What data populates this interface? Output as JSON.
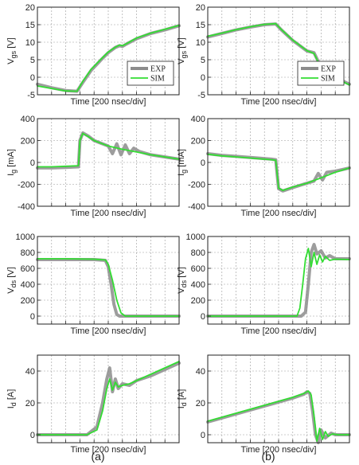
{
  "colors": {
    "exp": "#8c8c8c",
    "sim": "#33dd33",
    "axis": "#222222",
    "grid": "#999999"
  },
  "captions": [
    "(a)",
    "(b)"
  ],
  "chart_data": [
    {
      "type": "line",
      "panel": "a",
      "row": 0,
      "ylabel_main": "V",
      "ylabel_sub": "gs",
      "ylabel_unit": " [V]",
      "xlabel": "Time [200 nsec/div]",
      "ylim": [
        -5,
        20
      ],
      "yticks": [
        -5,
        0,
        5,
        10,
        15,
        20
      ],
      "xlim": [
        0,
        10
      ],
      "xdivs": 10,
      "legend": {
        "position": "bottom-right",
        "entries": [
          "EXP",
          "SIM"
        ]
      },
      "series": [
        {
          "name": "EXP",
          "x": [
            0,
            1.0,
            2.0,
            2.8,
            3.2,
            3.8,
            4.5,
            5.0,
            5.5,
            5.8,
            6.0,
            6.3,
            7,
            8,
            9,
            10
          ],
          "y": [
            -2,
            -3,
            -3.8,
            -4,
            -1.5,
            2,
            5,
            7,
            8.5,
            9,
            8.8,
            9.5,
            11,
            12.5,
            13.5,
            14.7
          ]
        },
        {
          "name": "SIM",
          "x": [
            0,
            1.0,
            2.0,
            2.8,
            3.2,
            3.8,
            4.5,
            5.0,
            5.5,
            5.8,
            6.0,
            6.3,
            7,
            8,
            9,
            10
          ],
          "y": [
            -2.5,
            -3.2,
            -3.9,
            -4,
            -1.2,
            2.3,
            5.2,
            7.2,
            8.6,
            9.2,
            9,
            9.6,
            11.2,
            12.6,
            13.7,
            14.8
          ]
        }
      ]
    },
    {
      "type": "line",
      "panel": "b",
      "row": 0,
      "ylabel_main": "V",
      "ylabel_sub": "gs",
      "ylabel_unit": " [V]",
      "xlabel": "Time [200 nsec/div]",
      "ylim": [
        -5,
        20
      ],
      "yticks": [
        -5,
        0,
        5,
        10,
        15,
        20
      ],
      "xlim": [
        0,
        10
      ],
      "xdivs": 10,
      "legend": {
        "position": "bottom-right",
        "entries": [
          "EXP",
          "SIM"
        ]
      },
      "series": [
        {
          "name": "EXP",
          "x": [
            0,
            1,
            2,
            3,
            4.0,
            4.8,
            5.2,
            6,
            7,
            7.5,
            7.8,
            8.2,
            9,
            10
          ],
          "y": [
            11.5,
            12.5,
            13.5,
            14.3,
            15,
            15.2,
            13.5,
            10.5,
            7.5,
            7,
            4.5,
            2,
            0,
            -2
          ]
        },
        {
          "name": "SIM",
          "x": [
            0,
            1,
            2,
            3,
            4.0,
            4.8,
            5.2,
            6,
            7,
            7.5,
            7.8,
            8.2,
            9,
            10
          ],
          "y": [
            11.7,
            12.6,
            13.6,
            14.4,
            15.1,
            15.3,
            13.6,
            10.6,
            7.6,
            6.8,
            4.3,
            1.8,
            -0.2,
            -2.2
          ]
        }
      ]
    },
    {
      "type": "line",
      "panel": "a",
      "row": 1,
      "ylabel_main": "I",
      "ylabel_sub": "g",
      "ylabel_unit": " [mA]",
      "xlabel": "Time [200 nsec/div]",
      "ylim": [
        -400,
        400
      ],
      "yticks": [
        -400,
        -200,
        0,
        200,
        400
      ],
      "xlim": [
        0,
        10
      ],
      "xdivs": 10,
      "series": [
        {
          "name": "EXP",
          "x": [
            0,
            1,
            2,
            2.9,
            3.0,
            3.2,
            3.6,
            4,
            5,
            5.3,
            5.6,
            5.9,
            6.2,
            6.5,
            6.8,
            7.2,
            8,
            9,
            10
          ],
          "y": [
            -50,
            -50,
            -45,
            -40,
            200,
            270,
            240,
            200,
            150,
            80,
            170,
            70,
            160,
            80,
            130,
            100,
            70,
            50,
            30
          ]
        },
        {
          "name": "SIM",
          "x": [
            0,
            1,
            2,
            2.9,
            3.0,
            3.2,
            3.6,
            4,
            5,
            6,
            7,
            8,
            9,
            10
          ],
          "y": [
            -40,
            -40,
            -35,
            -30,
            200,
            265,
            235,
            200,
            150,
            120,
            95,
            70,
            50,
            30
          ]
        }
      ]
    },
    {
      "type": "line",
      "panel": "b",
      "row": 1,
      "ylabel_main": "I",
      "ylabel_sub": "g",
      "ylabel_unit": " [mA]",
      "xlabel": "Time [200 nsec/div]",
      "ylim": [
        -400,
        400
      ],
      "yticks": [
        -400,
        -200,
        0,
        200,
        400
      ],
      "xlim": [
        0,
        10
      ],
      "xdivs": 10,
      "series": [
        {
          "name": "EXP",
          "x": [
            0,
            1,
            2,
            3,
            4.5,
            4.8,
            5.0,
            5.3,
            6,
            7,
            7.5,
            7.8,
            8.1,
            8.4,
            9,
            10
          ],
          "y": [
            80,
            65,
            55,
            45,
            30,
            25,
            -240,
            -260,
            -230,
            -190,
            -170,
            -100,
            -160,
            -90,
            -80,
            -50
          ]
        },
        {
          "name": "SIM",
          "x": [
            0,
            1,
            2,
            3,
            4.5,
            4.8,
            5.0,
            5.3,
            6,
            7,
            8,
            9,
            10
          ],
          "y": [
            75,
            60,
            50,
            40,
            25,
            20,
            -235,
            -255,
            -225,
            -190,
            -140,
            -90,
            -50
          ]
        }
      ]
    },
    {
      "type": "line",
      "panel": "a",
      "row": 2,
      "ylabel_main": "V",
      "ylabel_sub": "ds",
      "ylabel_unit": " [V]",
      "xlabel": "Time [200 nsec/div]",
      "ylim": [
        -100,
        1000
      ],
      "yticks": [
        0,
        200,
        400,
        600,
        800,
        1000
      ],
      "xlim": [
        0,
        10
      ],
      "xdivs": 10,
      "series": [
        {
          "name": "EXP",
          "x": [
            0,
            2,
            4,
            4.8,
            5.0,
            5.2,
            5.4,
            5.6,
            5.8,
            10
          ],
          "y": [
            710,
            710,
            710,
            700,
            620,
            400,
            150,
            20,
            0,
            0
          ]
        },
        {
          "name": "SIM",
          "x": [
            0,
            2,
            4,
            4.8,
            5.0,
            5.3,
            5.6,
            5.9,
            6.2,
            10
          ],
          "y": [
            720,
            720,
            715,
            705,
            650,
            450,
            200,
            40,
            0,
            0
          ]
        }
      ]
    },
    {
      "type": "line",
      "panel": "b",
      "row": 2,
      "ylabel_main": "V",
      "ylabel_sub": "ds",
      "ylabel_unit": " [V]",
      "xlabel": "Time [200 nsec/div]",
      "ylim": [
        -100,
        1000
      ],
      "yticks": [
        0,
        200,
        400,
        600,
        800,
        1000
      ],
      "xlim": [
        0,
        10
      ],
      "xdivs": 10,
      "series": [
        {
          "name": "EXP",
          "x": [
            0,
            2,
            4,
            6.6,
            6.9,
            7.1,
            7.3,
            7.5,
            7.7,
            8.0,
            8.3,
            8.6,
            9,
            10
          ],
          "y": [
            0,
            0,
            0,
            0,
            50,
            400,
            800,
            900,
            780,
            820,
            730,
            760,
            720,
            720
          ]
        },
        {
          "name": "SIM",
          "x": [
            0,
            2,
            4,
            6.3,
            6.5,
            6.7,
            6.9,
            7.1,
            7.3,
            7.5,
            7.7,
            7.9,
            8.1,
            8.3,
            8.6,
            9,
            10
          ],
          "y": [
            0,
            0,
            0,
            0,
            100,
            400,
            720,
            850,
            620,
            800,
            650,
            770,
            680,
            750,
            700,
            715,
            710
          ]
        }
      ]
    },
    {
      "type": "line",
      "panel": "a",
      "row": 3,
      "ylabel_main": "I",
      "ylabel_sub": "d",
      "ylabel_unit": " [A]",
      "xlabel": "Time [200 nsec/div]",
      "ylim": [
        -5,
        50
      ],
      "yticks": [
        0,
        20,
        40
      ],
      "xlim": [
        0,
        10
      ],
      "xdivs": 10,
      "series": [
        {
          "name": "EXP",
          "x": [
            0,
            2,
            3.5,
            4.2,
            4.6,
            4.9,
            5.1,
            5.3,
            5.5,
            5.7,
            6.0,
            6.5,
            7,
            8,
            9,
            10
          ],
          "y": [
            0,
            0,
            0,
            5,
            20,
            35,
            42,
            27,
            35,
            29,
            32,
            31,
            34,
            37,
            41,
            45
          ]
        },
        {
          "name": "SIM",
          "x": [
            0,
            2,
            3.5,
            4.2,
            4.6,
            4.9,
            5.1,
            5.3,
            5.5,
            5.7,
            6.0,
            6.5,
            7,
            8,
            9,
            10
          ],
          "y": [
            0,
            0,
            0,
            3,
            15,
            29,
            35,
            28,
            33,
            30,
            31,
            32,
            34,
            38,
            42,
            46
          ]
        }
      ]
    },
    {
      "type": "line",
      "panel": "b",
      "row": 3,
      "ylabel_main": "I",
      "ylabel_sub": "d",
      "ylabel_unit": " [A]",
      "xlabel": "Time [200 nsec/div]",
      "ylim": [
        -5,
        50
      ],
      "yticks": [
        0,
        20,
        40
      ],
      "xlim": [
        0,
        10
      ],
      "xdivs": 10,
      "series": [
        {
          "name": "EXP",
          "x": [
            0,
            1,
            2,
            3,
            4,
            5,
            6,
            6.8,
            7.0,
            7.2,
            7.4,
            7.6,
            7.8,
            8.0,
            8.3,
            8.7,
            9,
            10
          ],
          "y": [
            8,
            10.5,
            13,
            15.5,
            18,
            20.5,
            23,
            25.5,
            27,
            26,
            15,
            0,
            -5,
            3,
            -2,
            1,
            0,
            0
          ]
        },
        {
          "name": "SIM",
          "x": [
            0,
            1,
            2,
            3,
            4,
            5,
            6,
            6.8,
            7.1,
            7.3,
            7.5,
            7.7,
            7.9,
            8.1,
            8.3,
            8.5,
            8.8,
            9.2,
            10
          ],
          "y": [
            8.5,
            11,
            13.5,
            16,
            18.5,
            21,
            23.5,
            26,
            27.5,
            25,
            12,
            -4,
            4,
            -3,
            2,
            -1,
            0.5,
            0,
            0
          ]
        }
      ]
    }
  ]
}
